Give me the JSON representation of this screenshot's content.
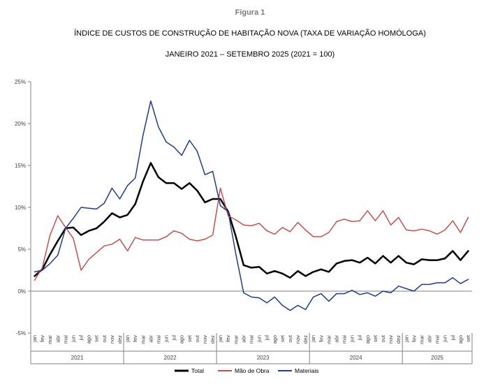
{
  "figure_label": "Figura 1",
  "chart_data": {
    "type": "line",
    "title": "ÍNDICE DE CUSTOS DE CONSTRUÇÃO DE HABITAÇÃO NOVA (TAXA DE VARIAÇÃO HOMÓLOGA)",
    "subtitle": "JANEIRO 2021 – SETEMBRO 2025 (2021 = 100)",
    "xlabel": "",
    "ylabel": "",
    "ylim": [
      -5,
      25
    ],
    "yticks": [
      "25%",
      "20%",
      "15%",
      "10%",
      "5%",
      "0%",
      "-5%"
    ],
    "ytick_values": [
      25,
      20,
      15,
      10,
      5,
      0,
      -5
    ],
    "grid": false,
    "legend_position": "bottom",
    "months": [
      "jan",
      "fev",
      "mar",
      "abr",
      "mai",
      "jun",
      "jul",
      "ago",
      "set",
      "out",
      "nov",
      "dez"
    ],
    "years": [
      {
        "label": "2021",
        "n": 12
      },
      {
        "label": "2022",
        "n": 12
      },
      {
        "label": "2023",
        "n": 12
      },
      {
        "label": "2024",
        "n": 12
      },
      {
        "label": "2025",
        "n": 9
      }
    ],
    "series": [
      {
        "name": "Total",
        "color": "#000000",
        "width": 2.5,
        "values": [
          1.8,
          2.6,
          4.4,
          6.0,
          7.5,
          7.6,
          6.7,
          7.2,
          7.5,
          8.3,
          9.3,
          8.8,
          9.1,
          10.4,
          13.1,
          15.3,
          13.6,
          12.9,
          12.9,
          12.2,
          12.9,
          12.0,
          10.6,
          11.0,
          11.0,
          9.5,
          6.5,
          3.1,
          2.8,
          2.9,
          2.1,
          2.4,
          2.1,
          1.6,
          2.4,
          1.8,
          2.3,
          2.6,
          2.3,
          3.3,
          3.6,
          3.7,
          3.4,
          4.0,
          3.3,
          4.2,
          3.4,
          4.2,
          3.4,
          3.2,
          3.8,
          3.7,
          3.7,
          3.9,
          4.8,
          3.7,
          4.8
        ]
      },
      {
        "name": "Mão de Obra",
        "color": "#c0504d",
        "width": 1.5,
        "values": [
          1.3,
          2.8,
          6.7,
          9.0,
          7.6,
          6.3,
          2.5,
          3.8,
          4.6,
          5.4,
          5.6,
          6.2,
          4.8,
          6.4,
          6.1,
          6.1,
          6.1,
          6.5,
          7.2,
          6.9,
          6.2,
          6.0,
          6.2,
          6.7,
          12.3,
          9.0,
          8.5,
          7.9,
          7.8,
          8.1,
          7.2,
          6.8,
          7.6,
          7.1,
          8.2,
          7.3,
          6.5,
          6.5,
          7.0,
          8.3,
          8.6,
          8.3,
          8.4,
          9.6,
          8.4,
          9.6,
          7.9,
          8.8,
          7.3,
          7.2,
          7.4,
          7.2,
          6.8,
          7.3,
          8.4,
          7.0,
          8.8
        ]
      },
      {
        "name": "Materiais",
        "color": "#1f3c88",
        "width": 1.5,
        "values": [
          2.3,
          2.5,
          3.3,
          4.3,
          7.5,
          8.7,
          10.0,
          9.9,
          9.8,
          10.5,
          12.3,
          11.0,
          12.6,
          13.5,
          18.6,
          22.7,
          19.6,
          17.8,
          17.2,
          16.2,
          18.0,
          16.7,
          13.9,
          14.3,
          10.2,
          9.5,
          4.4,
          -0.2,
          -0.7,
          -0.8,
          -1.4,
          -0.7,
          -1.7,
          -2.3,
          -1.7,
          -2.2,
          -0.7,
          -0.3,
          -1.2,
          -0.3,
          -0.3,
          0.1,
          -0.4,
          -0.2,
          -0.6,
          0.0,
          -0.2,
          0.6,
          0.3,
          0.0,
          0.8,
          0.8,
          1.0,
          1.0,
          1.6,
          0.9,
          1.4
        ]
      }
    ]
  }
}
